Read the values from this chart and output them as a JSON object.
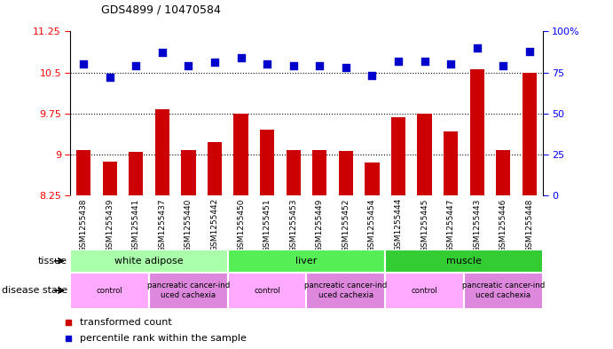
{
  "title": "GDS4899 / 10470584",
  "samples": [
    "GSM1255438",
    "GSM1255439",
    "GSM1255441",
    "GSM1255437",
    "GSM1255440",
    "GSM1255442",
    "GSM1255450",
    "GSM1255451",
    "GSM1255453",
    "GSM1255449",
    "GSM1255452",
    "GSM1255454",
    "GSM1255444",
    "GSM1255445",
    "GSM1255447",
    "GSM1255443",
    "GSM1255446",
    "GSM1255448"
  ],
  "transformed_count": [
    9.08,
    8.87,
    9.05,
    9.82,
    9.08,
    9.22,
    9.75,
    9.45,
    9.08,
    9.08,
    9.07,
    8.85,
    9.68,
    9.74,
    9.42,
    10.56,
    9.08,
    10.5
  ],
  "percentile_rank": [
    80,
    72,
    79,
    87,
    79,
    81,
    84,
    80,
    79,
    79,
    78,
    73,
    82,
    82,
    80,
    90,
    79,
    88
  ],
  "ylim_left": [
    8.25,
    11.25
  ],
  "ylim_right": [
    0,
    100
  ],
  "yticks_left": [
    8.25,
    9.0,
    9.75,
    10.5,
    11.25
  ],
  "yticks_right": [
    0,
    25,
    50,
    75,
    100
  ],
  "ytick_labels_left": [
    "8.25",
    "9",
    "9.75",
    "10.5",
    "11.25"
  ],
  "ytick_labels_right": [
    "0",
    "25",
    "50",
    "75",
    "100%"
  ],
  "hlines": [
    9.0,
    9.75,
    10.5
  ],
  "bar_color": "#cc0000",
  "dot_color": "#0000cc",
  "tissue_groups": [
    {
      "label": "white adipose",
      "start": 0,
      "end": 5,
      "color": "#aaffaa"
    },
    {
      "label": "liver",
      "start": 6,
      "end": 11,
      "color": "#55ee55"
    },
    {
      "label": "muscle",
      "start": 12,
      "end": 17,
      "color": "#33cc33"
    }
  ],
  "disease_groups": [
    {
      "label": "control",
      "start": 0,
      "end": 2,
      "color": "#ffaaff"
    },
    {
      "label": "pancreatic cancer-ind\nuced cachexia",
      "start": 3,
      "end": 5,
      "color": "#dd88dd"
    },
    {
      "label": "control",
      "start": 6,
      "end": 8,
      "color": "#ffaaff"
    },
    {
      "label": "pancreatic cancer-ind\nuced cachexia",
      "start": 9,
      "end": 11,
      "color": "#dd88dd"
    },
    {
      "label": "control",
      "start": 12,
      "end": 14,
      "color": "#ffaaff"
    },
    {
      "label": "pancreatic cancer-ind\nuced cachexia",
      "start": 15,
      "end": 17,
      "color": "#dd88dd"
    }
  ],
  "legend_items": [
    {
      "label": "transformed count",
      "color": "#cc0000"
    },
    {
      "label": "percentile rank within the sample",
      "color": "#0000cc"
    }
  ],
  "bar_width": 0.55,
  "dot_size": 40,
  "plot_bgcolor": "#ffffff",
  "xticklabel_area_color": "#d8d8d8"
}
